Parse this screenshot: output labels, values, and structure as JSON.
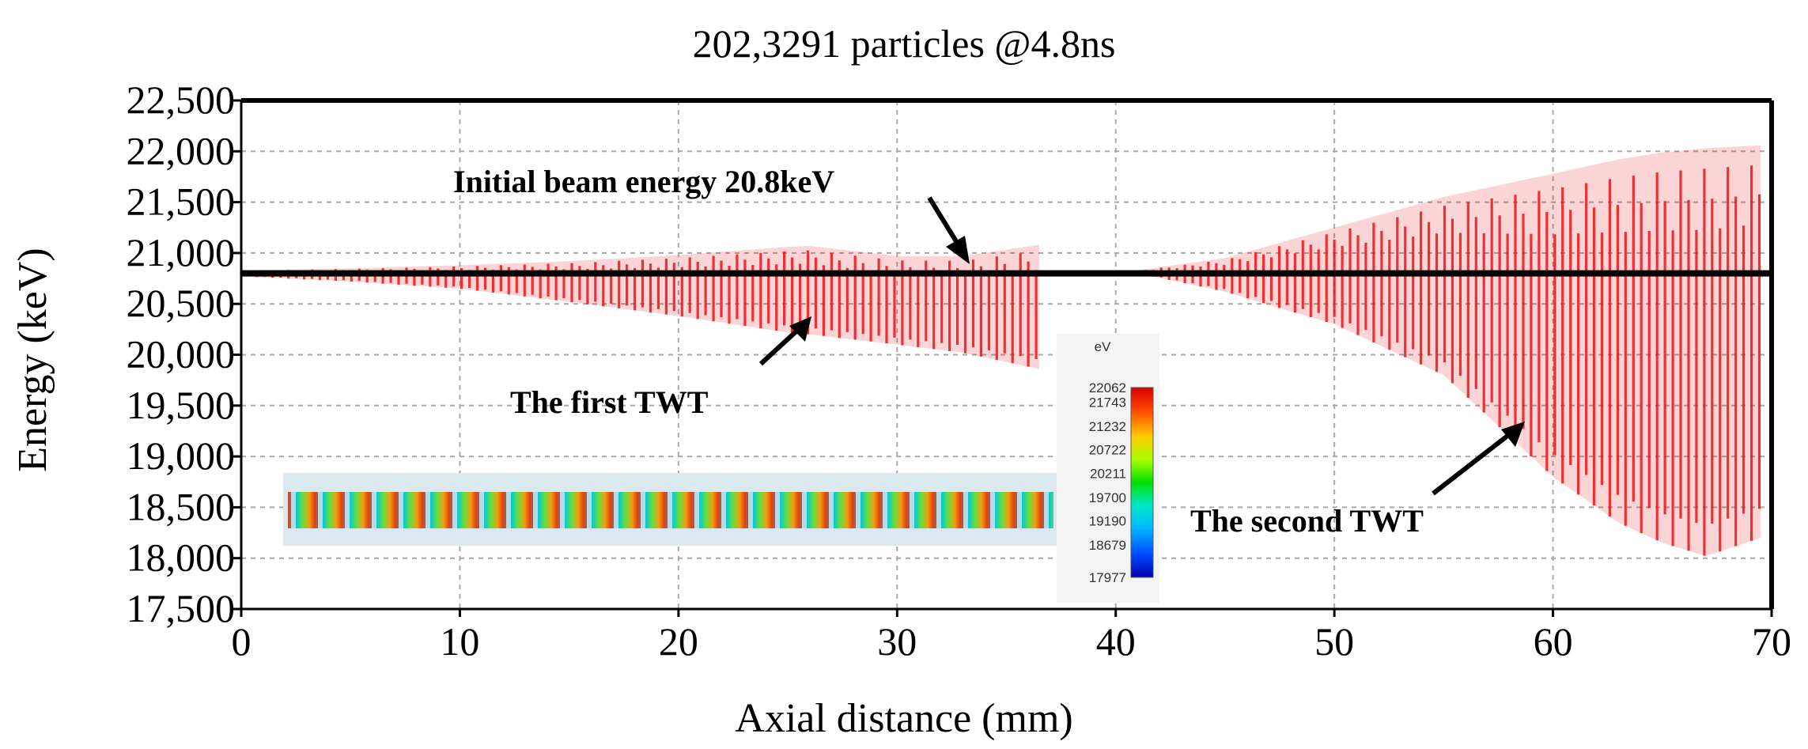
{
  "chart_data": {
    "type": "scatter",
    "title": "202,3291 particles @4.8ns",
    "xlabel": "Axial distance (mm)",
    "ylabel": "Energy (keV)",
    "xlim": [
      0,
      70
    ],
    "ylim": [
      17500,
      22500
    ],
    "x_ticks": [
      "0",
      "10",
      "20",
      "30",
      "40",
      "50",
      "60",
      "70"
    ],
    "y_ticks": [
      "17,500",
      "18,000",
      "18,500",
      "19,000",
      "19,500",
      "20,000",
      "20,500",
      "21,000",
      "21,500",
      "22,000",
      "22,500"
    ],
    "grid": true,
    "reference_line": {
      "label": "Initial beam energy 20.8keV",
      "value": 20800
    },
    "series": [
      {
        "name": "The first TWT",
        "color": "#e8141a",
        "x": [
          0,
          5,
          10,
          15,
          20,
          25,
          26,
          30,
          33,
          36.5
        ],
        "y_max": [
          20830,
          20850,
          20880,
          20920,
          20980,
          21060,
          21070,
          20970,
          20970,
          21080
        ],
        "y_min": [
          20770,
          20720,
          20650,
          20520,
          20380,
          20220,
          20200,
          20100,
          20020,
          19860
        ]
      },
      {
        "name": "The second TWT",
        "color": "#e8141a",
        "x": [
          41,
          45,
          50,
          55,
          60,
          63,
          65,
          67,
          69.5
        ],
        "y_max": [
          20830,
          20950,
          21250,
          21550,
          21780,
          21920,
          21990,
          22030,
          22060
        ],
        "y_min": [
          20800,
          20620,
          20300,
          19800,
          18800,
          18350,
          18150,
          18020,
          18200
        ]
      }
    ],
    "annotations": [
      "Initial beam energy 20.8keV",
      "The first TWT",
      "The second TWT"
    ],
    "inset": {
      "colorbar_unit": "eV",
      "colorbar_ticks": [
        "22062",
        "21743",
        "21232",
        "20722",
        "20211",
        "19700",
        "19190",
        "18679",
        "17977"
      ]
    }
  },
  "colors": {
    "particles": "#e8141a",
    "reference_line": "#000000",
    "grid": "#a8a8a8"
  }
}
